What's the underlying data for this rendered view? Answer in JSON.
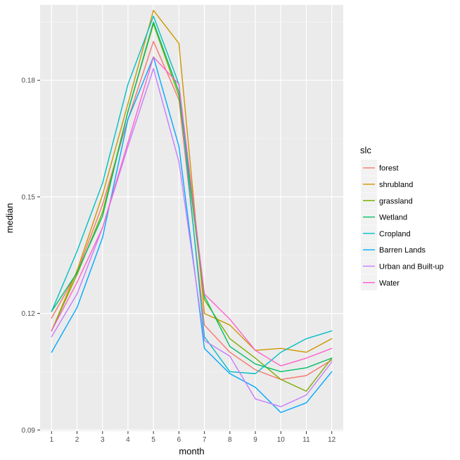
{
  "chart_data": {
    "type": "line",
    "xlabel": "month",
    "ylabel": "median",
    "x": [
      1,
      2,
      3,
      4,
      5,
      6,
      7,
      8,
      9,
      10,
      11,
      12
    ],
    "x_ticks": [
      "1",
      "2",
      "3",
      "4",
      "5",
      "6",
      "7",
      "8",
      "9",
      "10",
      "11",
      "12"
    ],
    "xlim": [
      0.55,
      12.45
    ],
    "ylim": [
      0.0897,
      0.1994
    ],
    "y_ticks": [
      0.09,
      0.12,
      0.15,
      0.18
    ],
    "y_tick_labels": [
      "0.09",
      "0.12",
      "0.15",
      "0.18"
    ],
    "grid": true,
    "legend": {
      "title": "slc",
      "placement": "right"
    },
    "series": [
      {
        "name": "forest",
        "color": "#F8766D",
        "values": [
          0.1188,
          0.1305,
          0.148,
          0.17,
          0.19,
          0.175,
          0.117,
          0.11,
          0.1055,
          0.103,
          0.104,
          0.108
        ]
      },
      {
        "name": "shrubland",
        "color": "#CD9600",
        "values": [
          0.1155,
          0.131,
          0.1505,
          0.174,
          0.198,
          0.1895,
          0.12,
          0.117,
          0.1105,
          0.111,
          0.11,
          0.1135
        ]
      },
      {
        "name": "grassland",
        "color": "#7CAE00",
        "values": [
          0.1155,
          0.13,
          0.146,
          0.172,
          0.1945,
          0.176,
          0.1235,
          0.1135,
          0.1085,
          0.103,
          0.1,
          0.1085
        ]
      },
      {
        "name": "Wetland",
        "color": "#00BE67",
        "values": [
          0.1205,
          0.1305,
          0.145,
          0.172,
          0.195,
          0.177,
          0.1245,
          0.1115,
          0.107,
          0.105,
          0.106,
          0.1085
        ]
      },
      {
        "name": "Cropland",
        "color": "#00BFC4",
        "values": [
          0.1205,
          0.136,
          0.1535,
          0.179,
          0.1965,
          0.179,
          0.114,
          0.105,
          0.1045,
          0.11,
          0.1135,
          0.1155
        ]
      },
      {
        "name": "Barren Lands",
        "color": "#00A9FF",
        "values": [
          0.11,
          0.1215,
          0.1395,
          0.17,
          0.186,
          0.163,
          0.111,
          0.1045,
          0.101,
          0.0945,
          0.097,
          0.105
        ]
      },
      {
        "name": "Urban and Built-up",
        "color": "#C77CFF",
        "values": [
          0.114,
          0.125,
          0.142,
          0.163,
          0.183,
          0.159,
          0.113,
          0.109,
          0.098,
          0.096,
          0.099,
          0.1075
        ]
      },
      {
        "name": "Water",
        "color": "#FF61CC",
        "values": [
          0.1155,
          0.128,
          0.142,
          0.164,
          0.186,
          0.179,
          0.125,
          0.1185,
          0.1105,
          0.1065,
          0.1085,
          0.111
        ]
      }
    ]
  }
}
